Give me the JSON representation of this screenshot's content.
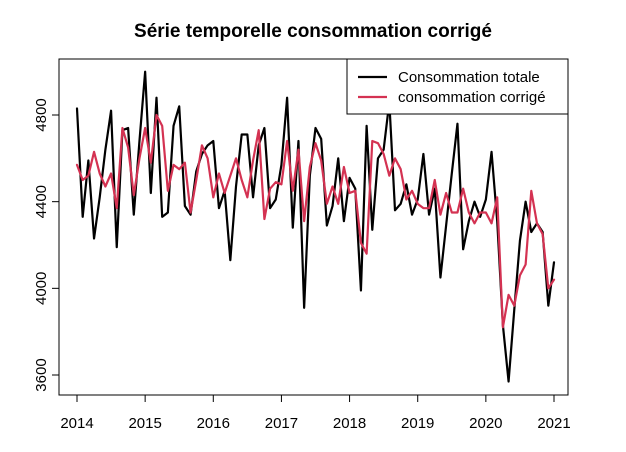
{
  "chart_data": {
    "type": "line",
    "title": "Série temporelle consommation corrigé",
    "xlabel": "",
    "ylabel": "",
    "xlim": [
      2014,
      2021
    ],
    "ylim": [
      3580,
      5000
    ],
    "x_ticks": [
      2014,
      2015,
      2016,
      2017,
      2018,
      2019,
      2020,
      2021
    ],
    "y_ticks": [
      3600,
      4000,
      4400,
      4800
    ],
    "grid": false,
    "legend_position": "top-right",
    "x_start": 2014,
    "x_step_months": 1,
    "series": [
      {
        "name": "Consommation totale",
        "color": "#000000",
        "values": [
          4830,
          4330,
          4590,
          4230,
          4420,
          4640,
          4820,
          4190,
          4730,
          4740,
          4340,
          4680,
          5000,
          4440,
          4880,
          4330,
          4350,
          4750,
          4840,
          4380,
          4340,
          4540,
          4620,
          4660,
          4680,
          4370,
          4450,
          4130,
          4470,
          4710,
          4710,
          4420,
          4660,
          4740,
          4370,
          4410,
          4570,
          4880,
          4280,
          4680,
          3910,
          4520,
          4740,
          4690,
          4290,
          4380,
          4600,
          4310,
          4510,
          4460,
          3990,
          4750,
          4270,
          4600,
          4640,
          4860,
          4360,
          4390,
          4480,
          4340,
          4410,
          4620,
          4340,
          4460,
          4050,
          4290,
          4530,
          4760,
          4180,
          4310,
          4400,
          4330,
          4410,
          4630,
          4310,
          3830,
          3570,
          3900,
          4220,
          4400,
          4260,
          4300,
          4260,
          3920,
          4120
        ]
      },
      {
        "name": "consommation corrigé",
        "color": "#d43252",
        "values": [
          4570,
          4500,
          4520,
          4630,
          4530,
          4470,
          4530,
          4370,
          4740,
          4650,
          4430,
          4600,
          4740,
          4580,
          4800,
          4750,
          4450,
          4570,
          4550,
          4580,
          4350,
          4500,
          4660,
          4600,
          4420,
          4530,
          4440,
          4520,
          4600,
          4500,
          4420,
          4590,
          4730,
          4320,
          4460,
          4490,
          4480,
          4680,
          4450,
          4640,
          4310,
          4560,
          4670,
          4590,
          4390,
          4470,
          4390,
          4560,
          4440,
          4450,
          4210,
          4160,
          4680,
          4670,
          4620,
          4520,
          4600,
          4550,
          4410,
          4450,
          4390,
          4370,
          4370,
          4500,
          4340,
          4440,
          4350,
          4350,
          4460,
          4350,
          4300,
          4350,
          4350,
          4300,
          4420,
          3820,
          3970,
          3920,
          4060,
          4110,
          4450,
          4300,
          4250,
          4000,
          4040
        ]
      }
    ]
  }
}
